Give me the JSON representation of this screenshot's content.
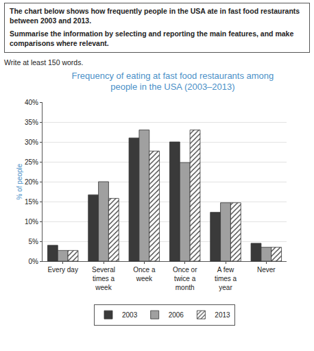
{
  "prompt": {
    "task": "The chart below shows how frequently people in the USA ate in fast food restaurants between 2003 and 2013.",
    "instruction": "Summarise the information by selecting and reporting the main features, and make comparisons where relevant.",
    "word_count": "Write at least 150 words."
  },
  "chart_data": {
    "type": "bar",
    "title": "Frequency of eating at fast food restaurants among people in the USA (2003–2013)",
    "y_label": "% of people",
    "categories": [
      "Every day",
      "Several times a week",
      "Once a week",
      "Once or twice a month",
      "A few times a year",
      "Never"
    ],
    "series": [
      {
        "name": "2003",
        "color": "#3a3a3a",
        "values": [
          4,
          16.7,
          31,
          30,
          12.3,
          4.5
        ]
      },
      {
        "name": "2006",
        "color": "#a0a0a0",
        "values": [
          2.7,
          20,
          33,
          24.8,
          14.7,
          3.5
        ]
      },
      {
        "name": "2013",
        "color": "#ffffff",
        "marker": "hatch",
        "values": [
          2.7,
          15.8,
          27.7,
          33,
          14.7,
          3.5
        ]
      }
    ],
    "ylim": [
      0,
      40
    ],
    "yticks": [
      {
        "value": 0,
        "label": "0%"
      },
      {
        "value": 5,
        "label": "5%"
      },
      {
        "value": 10,
        "label": "10%"
      },
      {
        "value": 15,
        "label": "15%"
      },
      {
        "value": 20,
        "label": "20%"
      },
      {
        "value": 25,
        "label": "25%"
      },
      {
        "value": 30,
        "label": "30%"
      },
      {
        "value": 35,
        "label": "35%"
      },
      {
        "value": 40,
        "label": "40%"
      }
    ],
    "grid": true,
    "legend": "bottom"
  }
}
